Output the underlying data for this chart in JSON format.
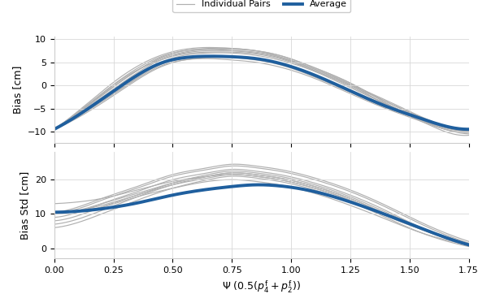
{
  "x_range": [
    0.0,
    1.75
  ],
  "x_ticks": [
    0.0,
    0.25,
    0.5,
    0.75,
    1.0,
    1.25,
    1.5,
    1.75
  ],
  "avg_bias_x": [
    0.0,
    0.15,
    0.3,
    0.45,
    0.55,
    0.65,
    0.75,
    0.85,
    0.95,
    1.1,
    1.25,
    1.4,
    1.55,
    1.65,
    1.75
  ],
  "avg_bias_y": [
    -9.5,
    -4.8,
    0.5,
    4.8,
    6.0,
    6.3,
    6.2,
    5.8,
    4.8,
    2.2,
    -1.2,
    -4.5,
    -7.2,
    -8.8,
    -9.5
  ],
  "avg_std_x": [
    0.0,
    0.1,
    0.2,
    0.35,
    0.5,
    0.65,
    0.75,
    0.85,
    0.95,
    1.1,
    1.25,
    1.4,
    1.55,
    1.65,
    1.75
  ],
  "avg_std_y": [
    10.5,
    10.8,
    11.5,
    13.2,
    15.5,
    17.2,
    18.0,
    18.5,
    18.2,
    16.5,
    13.5,
    9.8,
    5.8,
    3.2,
    1.0
  ],
  "individual_bias_curves": [
    [
      0.0,
      0.15,
      0.3,
      0.45,
      0.55,
      0.65,
      0.75,
      0.85,
      0.95,
      1.1,
      1.25,
      1.4,
      1.55,
      1.65,
      1.75
    ],
    [
      -9.5,
      -4.0,
      1.5,
      5.8,
      7.2,
      7.8,
      7.8,
      7.5,
      6.5,
      3.8,
      0.5,
      -3.5,
      -7.0,
      -9.0,
      -10.0
    ],
    [
      -9.5,
      -3.8,
      2.0,
      6.2,
      7.5,
      8.0,
      8.0,
      7.5,
      6.5,
      3.8,
      0.5,
      -3.8,
      -7.5,
      -9.5,
      -10.5
    ],
    [
      -9.5,
      -4.5,
      1.0,
      5.5,
      7.0,
      7.5,
      7.5,
      7.2,
      6.2,
      3.5,
      0.2,
      -3.2,
      -6.8,
      -8.8,
      -9.8
    ],
    [
      -9.5,
      -4.2,
      1.5,
      6.0,
      7.5,
      7.8,
      7.5,
      7.0,
      6.0,
      3.2,
      -0.2,
      -4.0,
      -7.5,
      -9.5,
      -10.2
    ],
    [
      -9.5,
      -5.0,
      0.0,
      4.5,
      5.8,
      6.2,
      6.2,
      5.8,
      4.8,
      2.2,
      -1.0,
      -4.2,
      -7.0,
      -8.8,
      -9.5
    ],
    [
      -9.5,
      -5.5,
      -0.5,
      4.0,
      5.5,
      6.0,
      6.0,
      5.5,
      4.5,
      1.8,
      -1.5,
      -4.8,
      -7.5,
      -9.2,
      -9.8
    ],
    [
      -9.5,
      -4.0,
      1.8,
      5.5,
      6.8,
      7.2,
      7.2,
      6.8,
      5.8,
      3.2,
      0.0,
      -3.5,
      -7.0,
      -9.0,
      -9.8
    ],
    [
      -9.5,
      -5.2,
      -0.2,
      4.2,
      5.5,
      5.8,
      5.5,
      5.0,
      4.0,
      1.5,
      -1.8,
      -5.0,
      -7.8,
      -9.5,
      -10.0
    ],
    [
      -9.5,
      -4.8,
      0.8,
      5.0,
      6.5,
      7.0,
      7.0,
      6.5,
      5.5,
      3.0,
      -0.5,
      -4.0,
      -7.2,
      -9.0,
      -9.8
    ],
    [
      -9.5,
      -3.5,
      2.5,
      6.5,
      7.8,
      8.2,
      8.0,
      7.5,
      6.2,
      3.5,
      0.2,
      -4.2,
      -7.8,
      -10.0,
      -10.8
    ]
  ],
  "individual_std_curves": [
    [
      0.0,
      0.1,
      0.2,
      0.35,
      0.5,
      0.65,
      0.75,
      0.85,
      0.95,
      1.1,
      1.25,
      1.4,
      1.55,
      1.65,
      1.75
    ],
    [
      10.5,
      12.0,
      14.5,
      18.0,
      21.5,
      23.5,
      24.5,
      24.0,
      23.0,
      20.5,
      17.0,
      12.5,
      7.5,
      4.5,
      2.0
    ],
    [
      10.5,
      11.5,
      14.0,
      17.5,
      21.0,
      23.0,
      24.0,
      23.5,
      22.5,
      20.0,
      16.5,
      12.0,
      7.0,
      4.0,
      1.5
    ],
    [
      8.0,
      9.5,
      12.0,
      15.5,
      19.0,
      21.5,
      22.5,
      22.0,
      21.0,
      18.5,
      15.0,
      10.5,
      6.0,
      3.5,
      1.2
    ],
    [
      7.0,
      8.5,
      11.0,
      15.0,
      18.5,
      21.0,
      22.0,
      21.5,
      20.5,
      18.0,
      14.5,
      10.0,
      5.5,
      3.0,
      1.0
    ],
    [
      10.5,
      11.0,
      12.5,
      15.5,
      18.5,
      20.5,
      21.5,
      21.0,
      20.0,
      17.5,
      14.0,
      9.5,
      5.5,
      3.0,
      1.0
    ],
    [
      10.5,
      10.8,
      12.0,
      15.0,
      17.5,
      19.5,
      20.0,
      19.5,
      18.5,
      16.0,
      12.5,
      8.5,
      4.5,
      2.5,
      0.8
    ],
    [
      13.0,
      13.5,
      14.5,
      17.0,
      19.5,
      21.0,
      21.5,
      21.0,
      20.0,
      17.5,
      14.0,
      9.5,
      5.5,
      3.2,
      1.0
    ],
    [
      6.0,
      7.5,
      10.0,
      14.0,
      17.5,
      20.0,
      21.0,
      20.5,
      19.5,
      17.0,
      13.5,
      9.0,
      4.5,
      2.2,
      0.5
    ],
    [
      10.0,
      11.0,
      13.0,
      16.0,
      19.0,
      21.0,
      22.0,
      21.5,
      20.5,
      18.0,
      14.5,
      10.0,
      5.5,
      3.0,
      1.0
    ],
    [
      9.0,
      10.5,
      13.0,
      16.5,
      20.0,
      22.0,
      23.0,
      22.5,
      21.5,
      19.0,
      15.5,
      11.0,
      6.0,
      3.5,
      1.2
    ]
  ],
  "avg_color": "#1f5f9e",
  "individual_color": "#b0b0b0",
  "avg_linewidth": 2.8,
  "individual_linewidth": 0.85,
  "grid_color": "#d8d8d8",
  "bias_yticks": [
    -10,
    -5,
    0,
    5,
    10
  ],
  "bias_ylim": [
    -12.5,
    10.5
  ],
  "std_yticks": [
    0,
    10,
    20
  ],
  "std_ylim": [
    -3,
    28
  ],
  "ylabel_bias": "Bias [cm]",
  "ylabel_std": "Bias Std [cm]",
  "xlabel": "$\\Psi\\ (0.5(p_4^\\mathrm{f} + p_2^\\mathrm{f}))$",
  "legend_individual": "Individual Pairs",
  "legend_average": "Average",
  "figure_facecolor": "#ffffff",
  "axes_facecolor": "#ffffff"
}
